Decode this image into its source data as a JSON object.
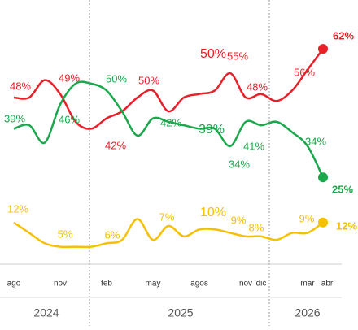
{
  "chart_data": {
    "type": "line",
    "categories": [
      "ago",
      null,
      null,
      "nov",
      null,
      null,
      "feb",
      null,
      null,
      "may",
      null,
      null,
      "agos",
      null,
      null,
      "nov",
      "dic",
      null,
      null,
      "mar",
      "abr"
    ],
    "years": [
      "2024",
      "2025",
      "2026"
    ],
    "ylim": [
      0,
      70
    ],
    "series": [
      {
        "name": "red",
        "color": "#e8202a",
        "values": [
          48,
          48,
          53,
          49,
          41,
          39,
          42,
          44,
          48,
          50,
          44,
          48,
          49,
          50,
          55,
          48,
          49,
          47,
          50,
          56,
          62
        ],
        "value_labels": [
          "48%",
          null,
          null,
          "49%",
          null,
          null,
          "42%",
          null,
          null,
          "50%",
          null,
          null,
          null,
          "50%",
          "55%",
          "48%",
          null,
          null,
          null,
          "56%",
          "62%"
        ]
      },
      {
        "name": "green",
        "color": "#1aa84c",
        "values": [
          39,
          40,
          35,
          46,
          52,
          52,
          50,
          44,
          37,
          42,
          41,
          40,
          39,
          39,
          34,
          41,
          40,
          41,
          38,
          34,
          25
        ],
        "value_labels": [
          "39%",
          null,
          null,
          "46%",
          null,
          null,
          "50%",
          null,
          null,
          "42%",
          null,
          null,
          null,
          "39%",
          "34%",
          "41%",
          null,
          null,
          null,
          "34%",
          "25%"
        ]
      },
      {
        "name": "yellow",
        "color": "#f5c000",
        "values": [
          12,
          9,
          6,
          5,
          5,
          5,
          6,
          7,
          13,
          7,
          11,
          8,
          10,
          10,
          9,
          8,
          8,
          7,
          9,
          9,
          12
        ],
        "value_labels": [
          "12%",
          null,
          null,
          "5%",
          null,
          null,
          "6%",
          null,
          null,
          "7%",
          null,
          null,
          null,
          "10%",
          "9%",
          "8%",
          null,
          null,
          null,
          "9%",
          "12%"
        ]
      }
    ]
  }
}
